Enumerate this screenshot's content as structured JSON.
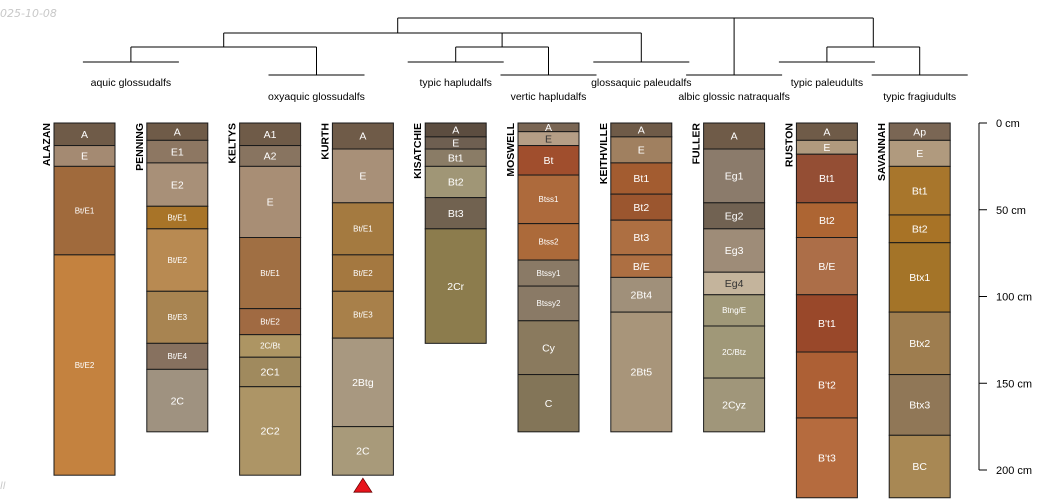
{
  "figure": {
    "date_stamp": "025-10-08",
    "corner_mark": "ll",
    "no_contact_marker": "profile bottom not reached"
  },
  "depth_axis": {
    "unit": "cm",
    "ticks": [
      {
        "depth": 0,
        "label": "0 cm"
      },
      {
        "depth": 50,
        "label": "50 cm"
      },
      {
        "depth": 100,
        "label": "100 cm"
      },
      {
        "depth": 150,
        "label": "150 cm"
      },
      {
        "depth": 200,
        "label": "200 cm"
      }
    ]
  },
  "groups": [
    {
      "id": "g1",
      "label": "aquic glossudalfs",
      "members": [
        "ALAZAN",
        "PENNING"
      ]
    },
    {
      "id": "g2",
      "label": "oxyaquic glossudalfs",
      "members": [
        "KELTYS",
        "KURTH"
      ]
    },
    {
      "id": "g3",
      "label": "typic hapludalfs",
      "members": [
        "KISATCHIE"
      ]
    },
    {
      "id": "g4",
      "label": "vertic hapludalfs",
      "members": [
        "MOSWELL"
      ]
    },
    {
      "id": "g5",
      "label": "glossaquic paleudalfs",
      "members": [
        "KEITHVILLE"
      ]
    },
    {
      "id": "g6",
      "label": "albic glossic natraqualfs",
      "members": [
        "FULLER"
      ]
    },
    {
      "id": "g7",
      "label": "typic paleudults",
      "members": [
        "RUSTON"
      ]
    },
    {
      "id": "g8",
      "label": "typic fragiudults",
      "members": [
        "SAVANNAH"
      ]
    }
  ],
  "dendrogram": {
    "merges": [
      {
        "id": "m1",
        "children": [
          "g1",
          "g2"
        ]
      },
      {
        "id": "m2",
        "children": [
          "g3",
          "g4"
        ]
      },
      {
        "id": "m3",
        "children": [
          "m2",
          "g5"
        ]
      },
      {
        "id": "m4",
        "children": [
          "m1",
          "m3"
        ]
      },
      {
        "id": "m5",
        "children": [
          "m4",
          "g6"
        ]
      },
      {
        "id": "m6",
        "children": [
          "g7",
          "g8"
        ]
      },
      {
        "id": "root",
        "children": [
          "m5",
          "m6"
        ]
      }
    ]
  },
  "profiles": [
    {
      "name": "ALAZAN",
      "no_contact": false,
      "horizons": [
        {
          "name": "A",
          "top": 0,
          "bottom": 13,
          "color": "#6f5b48"
        },
        {
          "name": "E",
          "top": 13,
          "bottom": 25,
          "color": "#a48a72"
        },
        {
          "name": "Bt/E1",
          "top": 25,
          "bottom": 76,
          "color": "#a06a3c"
        },
        {
          "name": "Bt/E2",
          "top": 76,
          "bottom": 203,
          "color": "#c4823f"
        }
      ]
    },
    {
      "name": "PENNING",
      "no_contact": false,
      "horizons": [
        {
          "name": "A",
          "top": 0,
          "bottom": 10,
          "color": "#6f5b48"
        },
        {
          "name": "E1",
          "top": 10,
          "bottom": 23,
          "color": "#8d7762"
        },
        {
          "name": "E2",
          "top": 23,
          "bottom": 48,
          "color": "#a89078"
        },
        {
          "name": "Bt/E1",
          "top": 48,
          "bottom": 61,
          "color": "#a87428"
        },
        {
          "name": "Bt/E2",
          "top": 61,
          "bottom": 97,
          "color": "#b88a52"
        },
        {
          "name": "Bt/E3",
          "top": 97,
          "bottom": 127,
          "color": "#a88451"
        },
        {
          "name": "Bt/E4",
          "top": 127,
          "bottom": 142,
          "color": "#87715f"
        },
        {
          "name": "2C",
          "top": 142,
          "bottom": 178,
          "color": "#9f9280"
        }
      ]
    },
    {
      "name": "KELTYS",
      "no_contact": false,
      "horizons": [
        {
          "name": "A1",
          "top": 0,
          "bottom": 13,
          "color": "#6f5b48"
        },
        {
          "name": "A2",
          "top": 13,
          "bottom": 25,
          "color": "#887460"
        },
        {
          "name": "E",
          "top": 25,
          "bottom": 66,
          "color": "#a88e75"
        },
        {
          "name": "Bt/E1",
          "top": 66,
          "bottom": 107,
          "color": "#a06f43"
        },
        {
          "name": "Bt/E2",
          "top": 107,
          "bottom": 122,
          "color": "#a06a42"
        },
        {
          "name": "2C/Bt",
          "top": 122,
          "bottom": 135,
          "color": "#ad9563"
        },
        {
          "name": "2C1",
          "top": 135,
          "bottom": 152,
          "color": "#a08a5e"
        },
        {
          "name": "2C2",
          "top": 152,
          "bottom": 203,
          "color": "#ad9566"
        }
      ]
    },
    {
      "name": "KURTH",
      "no_contact": true,
      "horizons": [
        {
          "name": "A",
          "top": 0,
          "bottom": 15,
          "color": "#6f5b48"
        },
        {
          "name": "E",
          "top": 15,
          "bottom": 46,
          "color": "#a89078"
        },
        {
          "name": "Bt/E1",
          "top": 46,
          "bottom": 76,
          "color": "#a47a40"
        },
        {
          "name": "Bt/E2",
          "top": 76,
          "bottom": 97,
          "color": "#a47840"
        },
        {
          "name": "Bt/E3",
          "top": 97,
          "bottom": 124,
          "color": "#a8804a"
        },
        {
          "name": "2Btg",
          "top": 124,
          "bottom": 175,
          "color": "#a89880"
        },
        {
          "name": "2C",
          "top": 175,
          "bottom": 203,
          "color": "#a89a7a"
        }
      ]
    },
    {
      "name": "KISATCHIE",
      "no_contact": false,
      "horizons": [
        {
          "name": "A",
          "top": 0,
          "bottom": 8,
          "color": "#5c4d40"
        },
        {
          "name": "E",
          "top": 8,
          "bottom": 15,
          "color": "#6e5f51"
        },
        {
          "name": "Bt1",
          "top": 15,
          "bottom": 25,
          "color": "#8a7c66"
        },
        {
          "name": "Bt2",
          "top": 25,
          "bottom": 43,
          "color": "#a09676"
        },
        {
          "name": "Bt3",
          "top": 43,
          "bottom": 61,
          "color": "#716250"
        },
        {
          "name": "2Cr",
          "top": 61,
          "bottom": 127,
          "color": "#8c7c4d"
        }
      ]
    },
    {
      "name": "MOSWELL",
      "no_contact": false,
      "horizons": [
        {
          "name": "A",
          "top": 0,
          "bottom": 5,
          "color": "#7a6654"
        },
        {
          "name": "E",
          "top": 5,
          "bottom": 13,
          "color": "#b59e86"
        },
        {
          "name": "Bt",
          "top": 13,
          "bottom": 30,
          "color": "#a04e2d"
        },
        {
          "name": "Btss1",
          "top": 30,
          "bottom": 58,
          "color": "#ad6a3c"
        },
        {
          "name": "Btss2",
          "top": 58,
          "bottom": 79,
          "color": "#ac6a3a"
        },
        {
          "name": "Btssy1",
          "top": 79,
          "bottom": 94,
          "color": "#8a7a66"
        },
        {
          "name": "Btssy2",
          "top": 94,
          "bottom": 114,
          "color": "#8a7a66"
        },
        {
          "name": "Cy",
          "top": 114,
          "bottom": 145,
          "color": "#8a7a5e"
        },
        {
          "name": "C",
          "top": 145,
          "bottom": 178,
          "color": "#837558"
        }
      ]
    },
    {
      "name": "KEITHVILLE",
      "no_contact": false,
      "horizons": [
        {
          "name": "A",
          "top": 0,
          "bottom": 8,
          "color": "#6f5b48"
        },
        {
          "name": "E",
          "top": 8,
          "bottom": 23,
          "color": "#a08060"
        },
        {
          "name": "Bt1",
          "top": 23,
          "bottom": 41,
          "color": "#a35c30"
        },
        {
          "name": "Bt2",
          "top": 41,
          "bottom": 56,
          "color": "#9b562f"
        },
        {
          "name": "Bt3",
          "top": 56,
          "bottom": 76,
          "color": "#ad6f42"
        },
        {
          "name": "B/E",
          "top": 76,
          "bottom": 89,
          "color": "#ad6f42"
        },
        {
          "name": "2Bt4",
          "top": 89,
          "bottom": 109,
          "color": "#a0907a"
        },
        {
          "name": "2Bt5",
          "top": 109,
          "bottom": 178,
          "color": "#a8957a"
        }
      ]
    },
    {
      "name": "FULLER",
      "no_contact": false,
      "horizons": [
        {
          "name": "A",
          "top": 0,
          "bottom": 15,
          "color": "#6f5b48"
        },
        {
          "name": "Eg1",
          "top": 15,
          "bottom": 46,
          "color": "#8b7b6b"
        },
        {
          "name": "Eg2",
          "top": 46,
          "bottom": 61,
          "color": "#716252"
        },
        {
          "name": "Eg3",
          "top": 61,
          "bottom": 86,
          "color": "#9e8c78"
        },
        {
          "name": "Eg4",
          "top": 86,
          "bottom": 99,
          "color": "#c4b49c"
        },
        {
          "name": "Btng/E",
          "top": 99,
          "bottom": 117,
          "color": "#a09878"
        },
        {
          "name": "2C/Btz",
          "top": 117,
          "bottom": 147,
          "color": "#a09878"
        },
        {
          "name": "2Cyz",
          "top": 147,
          "bottom": 178,
          "color": "#a0967a"
        }
      ]
    },
    {
      "name": "RUSTON",
      "no_contact": false,
      "horizons": [
        {
          "name": "A",
          "top": 0,
          "bottom": 10,
          "color": "#6f5b48"
        },
        {
          "name": "E",
          "top": 10,
          "bottom": 18,
          "color": "#b09a7e"
        },
        {
          "name": "Bt1",
          "top": 18,
          "bottom": 46,
          "color": "#944e34"
        },
        {
          "name": "Bt2",
          "top": 46,
          "bottom": 66,
          "color": "#ad6533"
        },
        {
          "name": "B/E",
          "top": 66,
          "bottom": 99,
          "color": "#ac6e48"
        },
        {
          "name": "B't1",
          "top": 99,
          "bottom": 132,
          "color": "#99482a"
        },
        {
          "name": "B't2",
          "top": 132,
          "bottom": 170,
          "color": "#ad6035"
        },
        {
          "name": "B't3",
          "top": 170,
          "bottom": 216,
          "color": "#b56b3e"
        }
      ]
    },
    {
      "name": "SAVANNAH",
      "no_contact": false,
      "horizons": [
        {
          "name": "Ap",
          "top": 0,
          "bottom": 10,
          "color": "#7a6654"
        },
        {
          "name": "E",
          "top": 10,
          "bottom": 25,
          "color": "#b09a7e"
        },
        {
          "name": "Bt1",
          "top": 25,
          "bottom": 53,
          "color": "#a8762c"
        },
        {
          "name": "Bt2",
          "top": 53,
          "bottom": 69,
          "color": "#a87326"
        },
        {
          "name": "Btx1",
          "top": 69,
          "bottom": 109,
          "color": "#a47428"
        },
        {
          "name": "Btx2",
          "top": 109,
          "bottom": 145,
          "color": "#9e7d4f"
        },
        {
          "name": "Btx3",
          "top": 145,
          "bottom": 180,
          "color": "#907757"
        },
        {
          "name": "BC",
          "top": 180,
          "bottom": 216,
          "color": "#a88854"
        }
      ]
    }
  ]
}
